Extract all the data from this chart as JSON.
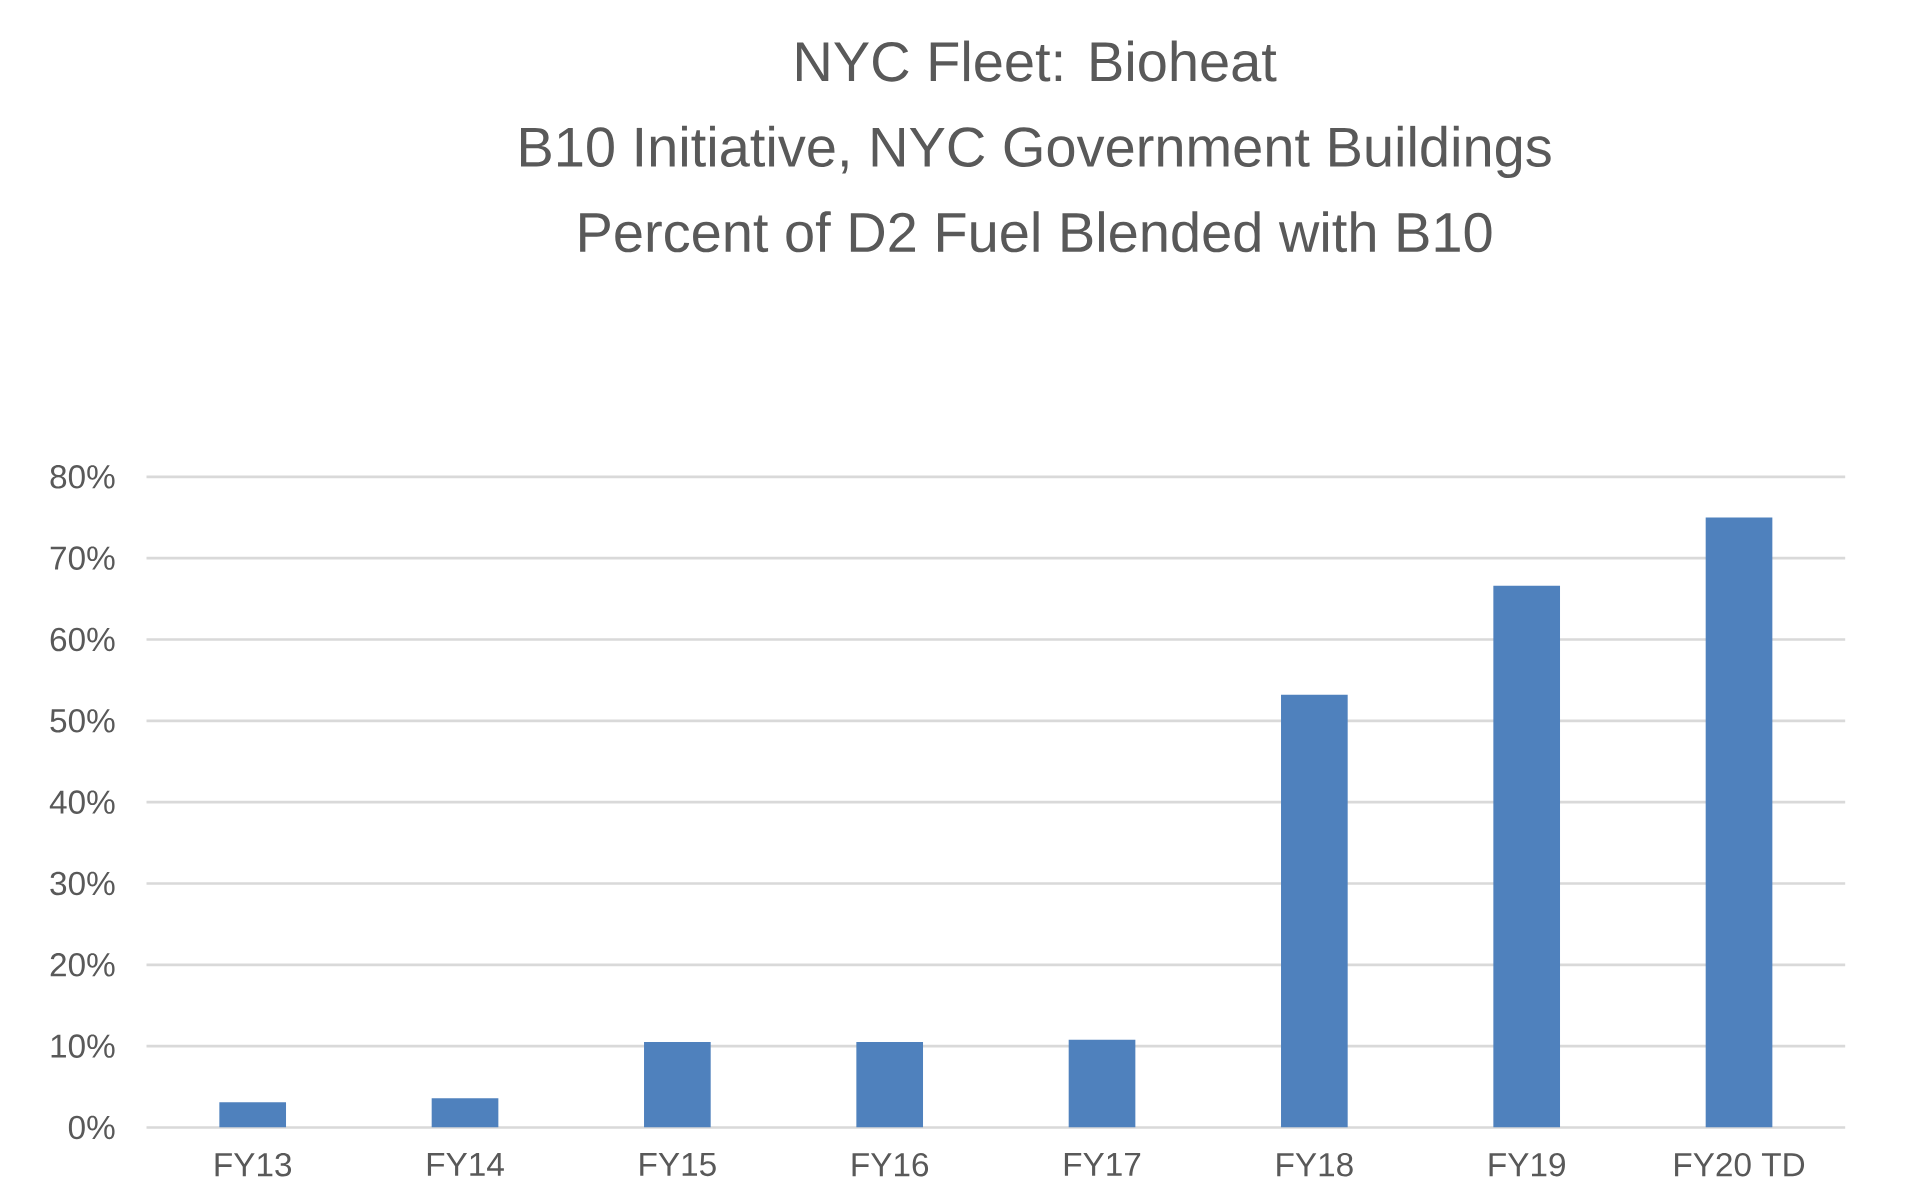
{
  "chart_data": {
    "type": "bar",
    "title": "NYC Fleet: Bioheat\nB10 Initiative, NYC Government Buildings\nPercent of D2 Fuel Blended with B10",
    "categories": [
      "FY13",
      "FY14",
      "FY15",
      "FY16",
      "FY17",
      "FY18",
      "FY19",
      "FY20 TD"
    ],
    "values": [
      3.1,
      3.6,
      10.5,
      10.5,
      10.8,
      53.2,
      66.6,
      75.0
    ],
    "color": "#4f81bd",
    "ylim": [
      0,
      80
    ],
    "yticks": [
      {
        "value": 0,
        "label": "0%"
      },
      {
        "value": 10,
        "label": "10%"
      },
      {
        "value": 20,
        "label": "20%"
      },
      {
        "value": 30,
        "label": "30%"
      },
      {
        "value": 40,
        "label": "40%"
      },
      {
        "value": 50,
        "label": "50%"
      },
      {
        "value": 60,
        "label": "60%"
      },
      {
        "value": 70,
        "label": "70%"
      },
      {
        "value": 80,
        "label": "80%"
      }
    ],
    "grid": "y"
  }
}
